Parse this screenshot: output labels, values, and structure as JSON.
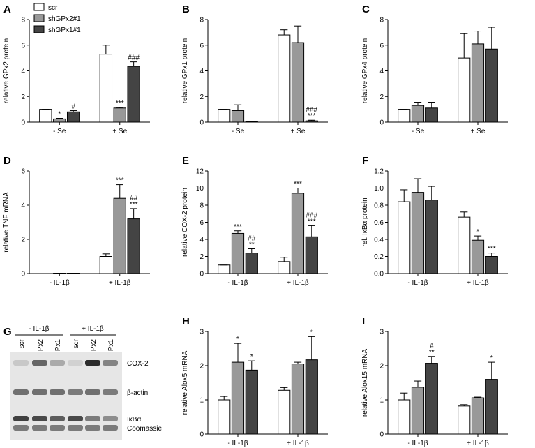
{
  "chart_data": [
    {
      "type": "bar",
      "panel": "A",
      "ylabel": "relative GPx2 protein",
      "categories": [
        "- Se",
        "+ Se"
      ],
      "ylim": [
        0,
        8
      ],
      "yticks": [
        0,
        2,
        4,
        6,
        8
      ],
      "legend": "upper left",
      "series": [
        {
          "name": "scr",
          "color": "#ffffff",
          "values": [
            1,
            5.3
          ],
          "errors": [
            0,
            0.7
          ],
          "labels": [
            [],
            []
          ]
        },
        {
          "name": "shGPx2#1",
          "color": "#999999",
          "values": [
            0.25,
            1.1
          ],
          "errors": [
            0.05,
            0.05
          ],
          "labels": [
            [
              "*"
            ],
            [
              "***"
            ]
          ]
        },
        {
          "name": "shGPx1#1",
          "color": "#444444",
          "values": [
            0.8,
            4.35
          ],
          "errors": [
            0.1,
            0.35
          ],
          "labels": [
            [
              "#"
            ],
            [
              "###"
            ]
          ]
        }
      ]
    },
    {
      "type": "bar",
      "panel": "B",
      "ylabel": "relative GPx1 protein",
      "categories": [
        "- Se",
        "+ Se"
      ],
      "ylim": [
        0,
        8
      ],
      "yticks": [
        0,
        2,
        4,
        6,
        8
      ],
      "series": [
        {
          "color": "#ffffff",
          "values": [
            1,
            6.8
          ],
          "errors": [
            0,
            0.4
          ],
          "labels": [
            [],
            []
          ]
        },
        {
          "color": "#999999",
          "values": [
            0.9,
            6.2
          ],
          "errors": [
            0.45,
            1.3
          ],
          "labels": [
            [],
            []
          ]
        },
        {
          "color": "#444444",
          "values": [
            0.05,
            0.1
          ],
          "errors": [
            0.02,
            0.05
          ],
          "labels": [
            [],
            [
              "###",
              "***"
            ]
          ]
        }
      ]
    },
    {
      "type": "bar",
      "panel": "C",
      "ylabel": "relative GPx4 protein",
      "categories": [
        "- Se",
        "+ Se"
      ],
      "ylim": [
        0,
        8
      ],
      "yticks": [
        0,
        2,
        4,
        6,
        8
      ],
      "series": [
        {
          "color": "#ffffff",
          "values": [
            1,
            5
          ],
          "errors": [
            0,
            1.9
          ],
          "labels": [
            [],
            []
          ]
        },
        {
          "color": "#999999",
          "values": [
            1.3,
            6.1
          ],
          "errors": [
            0.25,
            1.0
          ],
          "labels": [
            [],
            []
          ]
        },
        {
          "color": "#444444",
          "values": [
            1.1,
            5.7
          ],
          "errors": [
            0.45,
            1.7
          ],
          "labels": [
            [],
            []
          ]
        }
      ]
    },
    {
      "type": "bar",
      "panel": "D",
      "ylabel": "relative TNF mRNA",
      "categories": [
        "- IL-1β",
        "+ IL-1β"
      ],
      "ylim": [
        0,
        6
      ],
      "yticks": [
        0,
        2,
        4,
        6
      ],
      "series": [
        {
          "color": "#ffffff",
          "values": [
            0,
            1.0
          ],
          "errors": [
            0,
            0.15
          ],
          "labels": [
            [],
            []
          ]
        },
        {
          "color": "#999999",
          "values": [
            0.02,
            4.4
          ],
          "errors": [
            0,
            0.8
          ],
          "labels": [
            [],
            [
              "***"
            ]
          ]
        },
        {
          "color": "#444444",
          "values": [
            0.02,
            3.2
          ],
          "errors": [
            0,
            0.6
          ],
          "labels": [
            [],
            [
              "##",
              "***"
            ]
          ]
        }
      ]
    },
    {
      "type": "bar",
      "panel": "E",
      "ylabel": "relative COX-2 protein",
      "categories": [
        "- IL-1β",
        "+ IL-1β"
      ],
      "ylim": [
        0,
        12
      ],
      "yticks": [
        0,
        2,
        4,
        6,
        8,
        10,
        12
      ],
      "series": [
        {
          "color": "#ffffff",
          "values": [
            1,
            1.4
          ],
          "errors": [
            0,
            0.5
          ],
          "labels": [
            [],
            []
          ]
        },
        {
          "color": "#999999",
          "values": [
            4.7,
            9.4
          ],
          "errors": [
            0.3,
            0.6
          ],
          "labels": [
            [
              "***"
            ],
            [
              "***"
            ]
          ]
        },
        {
          "color": "#444444",
          "values": [
            2.4,
            4.3
          ],
          "errors": [
            0.5,
            1.3
          ],
          "labels": [
            [
              "##",
              "**"
            ],
            [
              "###",
              "***"
            ]
          ]
        }
      ]
    },
    {
      "type": "bar",
      "panel": "F",
      "ylabel": "rel. IκBα protein",
      "categories": [
        "- IL-1β",
        "+ IL-1β"
      ],
      "ylim": [
        0,
        1.2
      ],
      "yticks": [
        {
          "value": 0,
          "label": "0.0"
        },
        0.2,
        0.4,
        0.6,
        0.8,
        {
          "value": 1,
          "label": "1.0"
        },
        1.2
      ],
      "series": [
        {
          "color": "#ffffff",
          "values": [
            0.84,
            0.66
          ],
          "errors": [
            0.14,
            0.06
          ],
          "labels": [
            [],
            []
          ]
        },
        {
          "color": "#999999",
          "values": [
            0.95,
            0.39
          ],
          "errors": [
            0.16,
            0.05
          ],
          "labels": [
            [],
            [
              "*"
            ]
          ]
        },
        {
          "color": "#444444",
          "values": [
            0.86,
            0.2
          ],
          "errors": [
            0.16,
            0.04
          ],
          "labels": [
            [],
            [
              "***"
            ]
          ]
        }
      ]
    },
    {
      "type": "bar",
      "panel": "H",
      "ylabel": "relative Alox5 mRNA",
      "categories": [
        "- IL-1β",
        "+ IL-1β"
      ],
      "ylim": [
        0,
        3
      ],
      "yticks": [
        0,
        1,
        2,
        3
      ],
      "series": [
        {
          "color": "#ffffff",
          "values": [
            1,
            1.28
          ],
          "errors": [
            0.1,
            0.08
          ],
          "labels": [
            [],
            []
          ]
        },
        {
          "color": "#999999",
          "values": [
            2.1,
            2.05
          ],
          "errors": [
            0.55,
            0.05
          ],
          "labels": [
            [
              "*"
            ],
            []
          ]
        },
        {
          "color": "#444444",
          "values": [
            1.87,
            2.17
          ],
          "errors": [
            0.27,
            0.68
          ],
          "labels": [
            [
              "*"
            ],
            [
              "*"
            ]
          ]
        }
      ]
    },
    {
      "type": "bar",
      "panel": "I",
      "ylabel": "relative Alox15 mRNA",
      "categories": [
        "- IL-1β",
        "+ IL-1β"
      ],
      "ylim": [
        0,
        3
      ],
      "yticks": [
        0,
        1,
        2,
        3
      ],
      "series": [
        {
          "color": "#ffffff",
          "values": [
            1,
            0.82
          ],
          "errors": [
            0.2,
            0.04
          ],
          "labels": [
            [],
            []
          ]
        },
        {
          "color": "#999999",
          "values": [
            1.37,
            1.06
          ],
          "errors": [
            0.18,
            0.02
          ],
          "labels": [
            [],
            []
          ]
        },
        {
          "color": "#444444",
          "values": [
            2.07,
            1.6
          ],
          "errors": [
            0.2,
            0.5
          ],
          "labels": [
            [
              "#",
              "**"
            ],
            [
              "*"
            ]
          ]
        }
      ]
    }
  ],
  "blot": {
    "panel": "G",
    "groups": [
      "- IL-1β",
      "+ IL-1β"
    ],
    "lanes": [
      "scr",
      "shGPx2",
      "shGPx1",
      "scr",
      "shGPx2",
      "shGPx1"
    ],
    "bands": [
      "COX-2",
      "β-actin",
      "IκBα",
      "Coomassie"
    ]
  }
}
